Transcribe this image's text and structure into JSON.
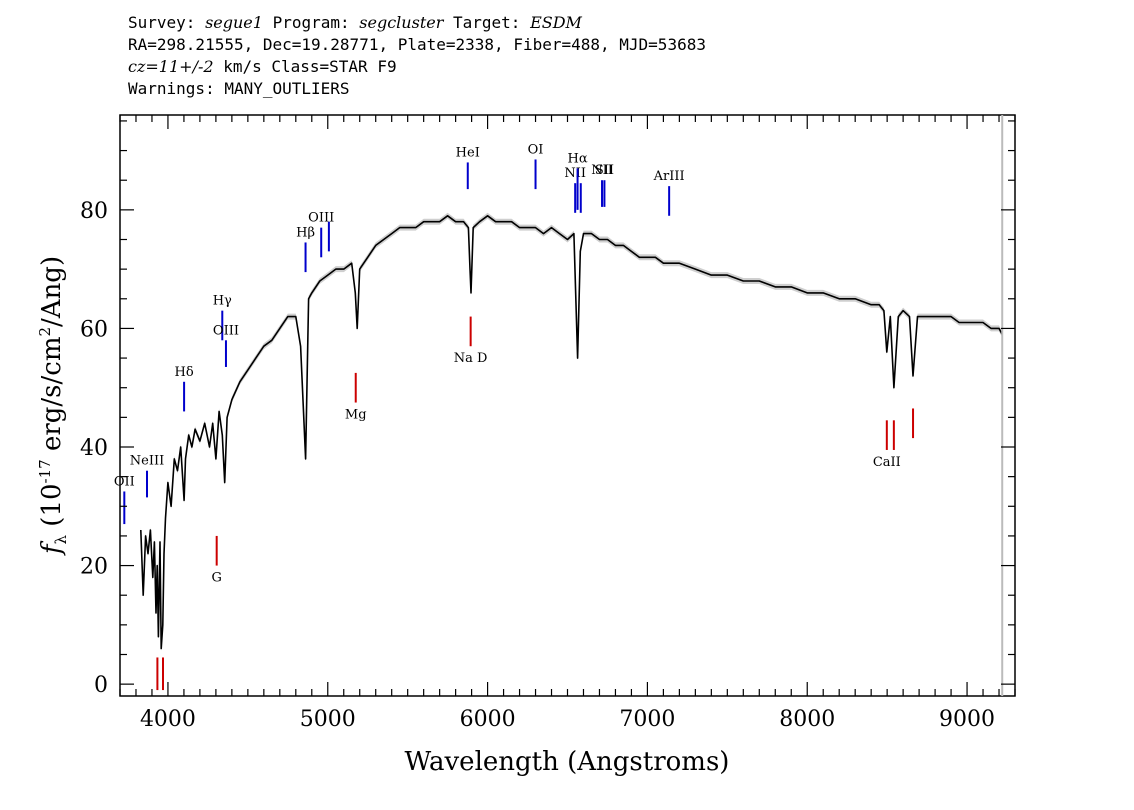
{
  "header": {
    "line1": {
      "survey_label": "Survey:",
      "survey": "segue1",
      "program_label": "Program:",
      "program": "segcluster",
      "target_label": "Target:",
      "target": "ESDM"
    },
    "line2": "RA=298.21555, Dec=19.28771, Plate=2338, Fiber=488, MJD=53683",
    "line3": {
      "cz": "cz=11+/-2",
      "rest": "km/s Class=STAR F9"
    },
    "line4": "Warnings: MANY_OUTLIERS"
  },
  "chart_data": {
    "type": "line",
    "title": "",
    "xlabel": "Wavelength (Angstroms)",
    "ylabel": "f_λ (10^-17 erg/s/cm^2/Ang)",
    "ylabel_parts": {
      "sym": "f",
      "sub": "λ",
      "pre": "(10",
      "exp1": "-17",
      "mid": "erg/s/cm",
      "exp2": "2",
      "post": "/Ang)"
    },
    "xlim": [
      3700,
      9300
    ],
    "ylim": [
      -2,
      96
    ],
    "x_ticks": [
      "4000",
      "5000",
      "6000",
      "7000",
      "8000",
      "9000"
    ],
    "y_ticks": [
      "0",
      "20",
      "40",
      "60",
      "80"
    ],
    "series": [
      {
        "color": "#000000",
        "x": [
          3830,
          3845,
          3860,
          3875,
          3890,
          3905,
          3915,
          3925,
          3933,
          3940,
          3950,
          3958,
          3968,
          3975,
          3985,
          4000,
          4020,
          4040,
          4060,
          4080,
          4101,
          4110,
          4130,
          4150,
          4170,
          4200,
          4230,
          4260,
          4280,
          4300,
          4320,
          4340,
          4355,
          4370,
          4400,
          4450,
          4500,
          4550,
          4600,
          4650,
          4700,
          4750,
          4800,
          4830,
          4861,
          4880,
          4900,
          4950,
          5000,
          5050,
          5100,
          5150,
          5172,
          5184,
          5200,
          5250,
          5300,
          5350,
          5400,
          5450,
          5500,
          5550,
          5600,
          5650,
          5700,
          5750,
          5800,
          5850,
          5880,
          5890,
          5896,
          5910,
          5950,
          6000,
          6050,
          6100,
          6150,
          6200,
          6250,
          6300,
          6350,
          6400,
          6450,
          6500,
          6540,
          6563,
          6580,
          6600,
          6650,
          6700,
          6750,
          6800,
          6850,
          6900,
          6950,
          7000,
          7050,
          7100,
          7150,
          7200,
          7300,
          7400,
          7500,
          7600,
          7700,
          7800,
          7900,
          8000,
          8100,
          8200,
          8300,
          8400,
          8450,
          8480,
          8498,
          8520,
          8542,
          8570,
          8600,
          8640,
          8662,
          8690,
          8750,
          8800,
          8850,
          8900,
          8950,
          9000,
          9050,
          9100,
          9150,
          9200,
          9220
        ],
        "values": [
          26,
          15,
          25,
          22,
          26,
          18,
          24,
          12,
          20,
          8,
          24,
          6,
          10,
          22,
          28,
          34,
          30,
          38,
          36,
          40,
          31,
          38,
          42,
          40,
          43,
          41,
          44,
          40,
          44,
          38,
          46,
          42,
          34,
          45,
          48,
          51,
          53,
          55,
          57,
          58,
          60,
          62,
          62,
          57,
          38,
          65,
          66,
          68,
          69,
          70,
          70,
          71,
          66,
          60,
          70,
          72,
          74,
          75,
          76,
          77,
          77,
          77,
          78,
          78,
          78,
          79,
          78,
          78,
          77,
          70,
          66,
          77,
          78,
          79,
          78,
          78,
          78,
          77,
          77,
          77,
          76,
          77,
          76,
          75,
          76,
          55,
          73,
          76,
          76,
          75,
          75,
          74,
          74,
          73,
          72,
          72,
          72,
          71,
          71,
          71,
          70,
          69,
          69,
          68,
          68,
          67,
          67,
          66,
          66,
          65,
          65,
          64,
          64,
          63,
          56,
          62,
          50,
          62,
          63,
          62,
          52,
          62,
          62,
          62,
          62,
          62,
          61,
          61,
          61,
          61,
          60,
          60,
          59
        ]
      }
    ],
    "lines": [
      {
        "label": "NeIII",
        "x": 3869,
        "color": "#0000cc",
        "y": [
          31.5,
          36
        ]
      },
      {
        "label": "OII",
        "x": 3727,
        "color": "#0000cc",
        "y": [
          27,
          32.5
        ]
      },
      {
        "label": "Hδ",
        "x": 4101,
        "color": "#0000cc",
        "y": [
          46,
          51
        ]
      },
      {
        "label": "Hγ",
        "x": 4340,
        "color": "#0000cc",
        "y": [
          58,
          63
        ]
      },
      {
        "label": "OIII",
        "x": 4363,
        "color": "#0000cc",
        "y": [
          53.5,
          58
        ]
      },
      {
        "label": "Hβ",
        "x": 4861,
        "color": "#0000cc",
        "y": [
          69.5,
          74.5
        ]
      },
      {
        "label": "OIII",
        "x": 4959,
        "color": "#0000cc",
        "y": [
          72,
          77
        ]
      },
      {
        "label": "",
        "x": 5007,
        "color": "#0000cc",
        "y": [
          73,
          78
        ]
      },
      {
        "label": "HeI",
        "x": 5876,
        "color": "#0000cc",
        "y": [
          83.5,
          88
        ]
      },
      {
        "label": "OI",
        "x": 6300,
        "color": "#0000cc",
        "y": [
          83.5,
          88.5
        ]
      },
      {
        "label": "NII",
        "x": 6548,
        "color": "#0000cc",
        "y": [
          79.5,
          84.5
        ]
      },
      {
        "label": "Hα",
        "x": 6563,
        "color": "#0000cc",
        "y": [
          80,
          87
        ]
      },
      {
        "label": "",
        "x": 6583,
        "color": "#0000cc",
        "y": [
          79.5,
          84.5
        ]
      },
      {
        "label": "NII",
        "x": 6716,
        "color": "#0000cc",
        "y": [
          80.5,
          85
        ]
      },
      {
        "label": "SII",
        "x": 6731,
        "color": "#0000cc",
        "y": [
          80.5,
          85
        ]
      },
      {
        "label": "ArIII",
        "x": 7136,
        "color": "#0000cc",
        "y": [
          79,
          84
        ]
      },
      {
        "label": "",
        "x": 3934,
        "color": "#cc0000",
        "y": [
          -1,
          4.5
        ]
      },
      {
        "label": "",
        "x": 3969,
        "color": "#cc0000",
        "y": [
          -1,
          4.5
        ]
      },
      {
        "label": "G",
        "x": 4305,
        "color": "#cc0000",
        "y": [
          20,
          25
        ]
      },
      {
        "label": "Mg",
        "x": 5175,
        "color": "#cc0000",
        "y": [
          47.5,
          52.5
        ]
      },
      {
        "label": "Na D",
        "x": 5894,
        "color": "#cc0000",
        "y": [
          57,
          62
        ]
      },
      {
        "label": "CaII",
        "x": 8498,
        "color": "#cc0000",
        "y": [
          39.5,
          44.5
        ]
      },
      {
        "label": "",
        "x": 8542,
        "color": "#cc0000",
        "y": [
          39.5,
          44.5
        ]
      },
      {
        "label": "",
        "x": 8662,
        "color": "#cc0000",
        "y": [
          41.5,
          46.5
        ]
      }
    ]
  }
}
